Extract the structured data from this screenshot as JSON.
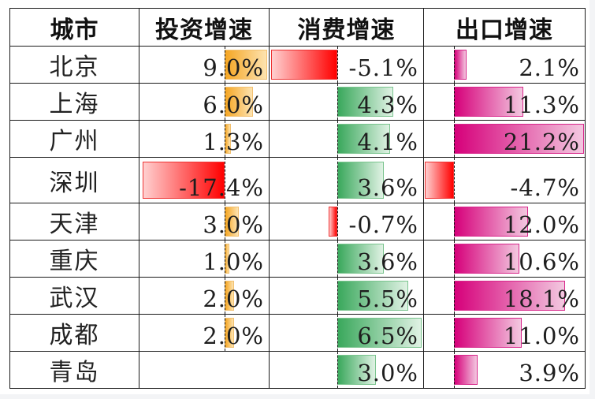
{
  "headers": {
    "city": "城市",
    "investment": "投资增速",
    "consumption": "消费增速",
    "export": "出口增速"
  },
  "colors": {
    "negative_bar": "#ff0000",
    "investment_bar": "#f5a623",
    "consumption_bar": "#3aa85c",
    "export_bar": "#d6007a",
    "grid": "#1a1a1a"
  },
  "rows": [
    {
      "city": "北京",
      "investment": "9.0%",
      "consumption": "-5.1%",
      "export": "2.1%"
    },
    {
      "city": "上海",
      "investment": "6.0%",
      "consumption": "4.3%",
      "export": "11.3%"
    },
    {
      "city": "广州",
      "investment": "1.3%",
      "consumption": "4.1%",
      "export": "21.2%"
    },
    {
      "city": "深圳",
      "investment": "-17.4%",
      "consumption": "3.6%",
      "export": "-4.7%"
    },
    {
      "city": "天津",
      "investment": "3.0%",
      "consumption": "-0.7%",
      "export": "12.0%"
    },
    {
      "city": "重庆",
      "investment": "1.0%",
      "consumption": "3.6%",
      "export": "10.6%"
    },
    {
      "city": "武汉",
      "investment": "2.0%",
      "consumption": "5.5%",
      "export": "18.1%"
    },
    {
      "city": "成都",
      "investment": "2.0%",
      "consumption": "6.5%",
      "export": "11.0%"
    },
    {
      "city": "青岛",
      "investment": "",
      "consumption": "3.0%",
      "export": "3.9%"
    }
  ],
  "chart_data": {
    "type": "table",
    "title": "",
    "columns": [
      "城市",
      "投资增速",
      "消费增速",
      "出口增速"
    ],
    "categories": [
      "北京",
      "上海",
      "广州",
      "深圳",
      "天津",
      "重庆",
      "武汉",
      "成都",
      "青岛"
    ],
    "series": [
      {
        "name": "投资增速",
        "unit": "%",
        "values": [
          9.0,
          6.0,
          1.3,
          -17.4,
          3.0,
          1.0,
          2.0,
          2.0,
          null
        ]
      },
      {
        "name": "消费增速",
        "unit": "%",
        "values": [
          -5.1,
          4.3,
          4.1,
          3.6,
          -0.7,
          3.6,
          5.5,
          6.5,
          3.0
        ]
      },
      {
        "name": "出口增速",
        "unit": "%",
        "values": [
          2.1,
          11.3,
          21.2,
          -4.7,
          12.0,
          10.6,
          18.1,
          11.0,
          3.9
        ]
      }
    ],
    "visual": "in-cell data bars with gradient fill; negative values in red extending left of dashed axis"
  }
}
